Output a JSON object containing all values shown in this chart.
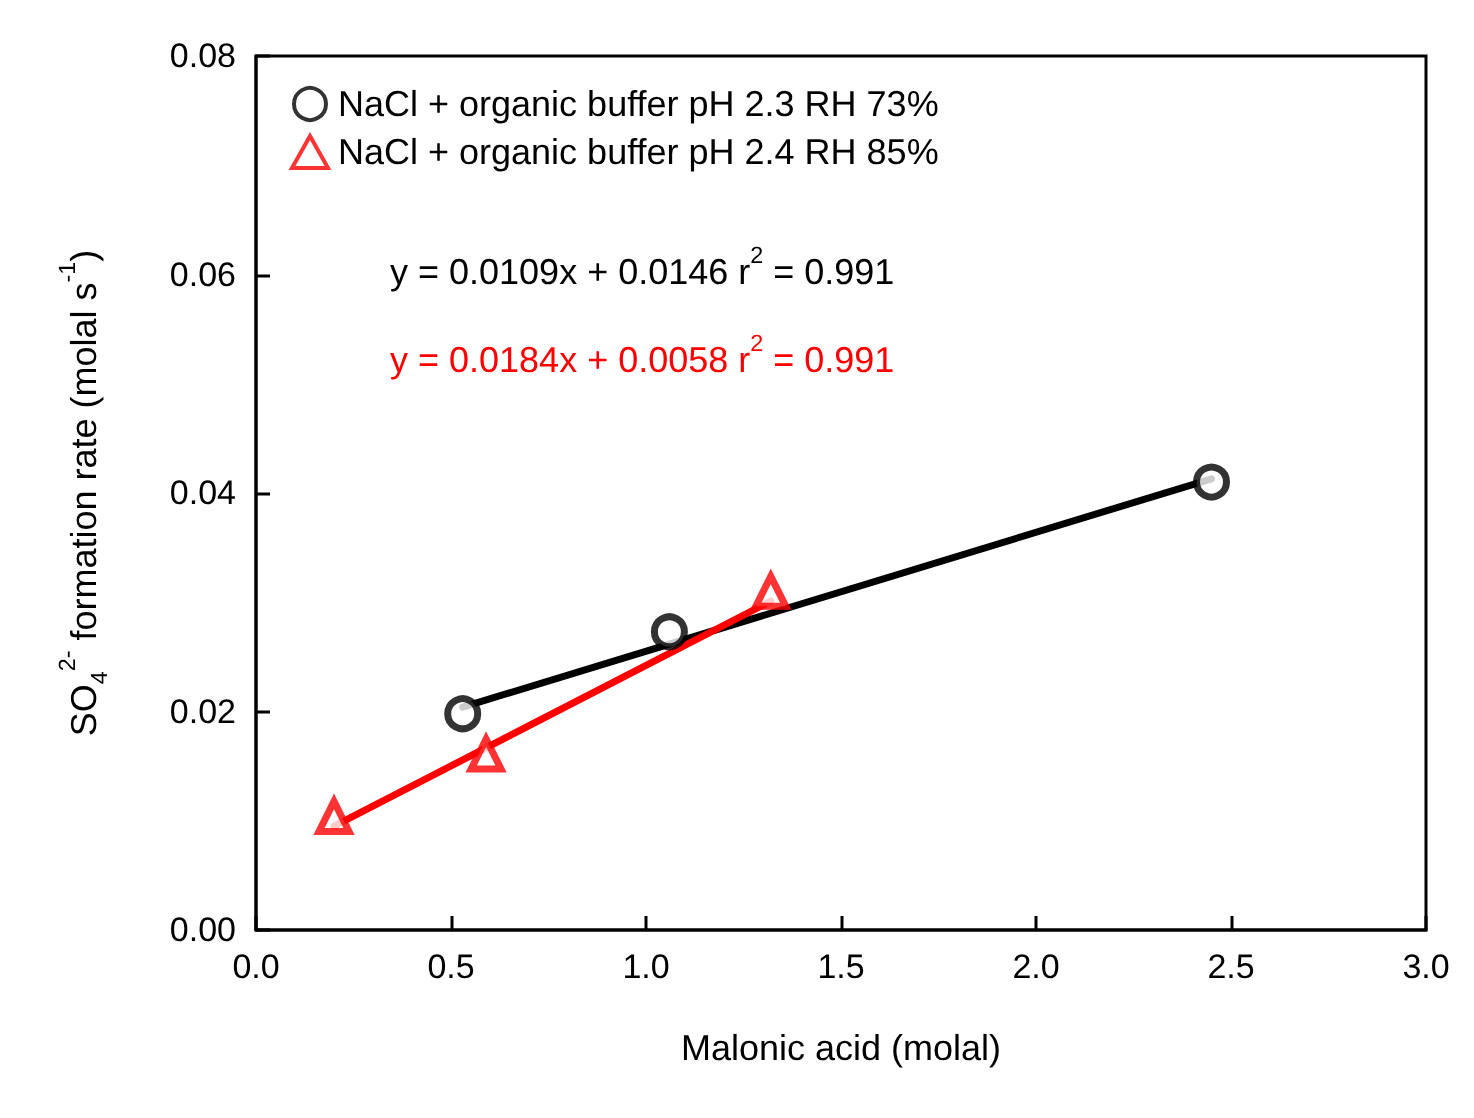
{
  "chart_data": {
    "type": "scatter",
    "xlabel": "Malonic acid (molal)",
    "ylabel": "SO$_{4}$$^{2-}$ formation rate (molal s$^{-1}$)",
    "xlim": [
      0,
      3
    ],
    "xticks": [
      {
        "value": 0,
        "label": "0.0"
      },
      {
        "value": 0.5,
        "label": "0.5"
      },
      {
        "value": 1,
        "label": "1.0"
      },
      {
        "value": 1.5,
        "label": "1.5"
      },
      {
        "value": 2,
        "label": "2.0"
      },
      {
        "value": 2.5,
        "label": "2.5"
      },
      {
        "value": 3,
        "label": "3.0"
      }
    ],
    "ylim": [
      0,
      0.08
    ],
    "yticks": [
      {
        "value": 0,
        "label": "0.00"
      },
      {
        "value": 0.02,
        "label": "0.02"
      },
      {
        "value": 0.04,
        "label": "0.04"
      },
      {
        "value": 0.06,
        "label": "0.06"
      },
      {
        "value": 0.08,
        "label": "0.08"
      }
    ],
    "legend": "top left",
    "grid": false,
    "annotations": [
      "y = 0.0109x + 0.0146 r$^{2}$ = 0.991",
      "y = 0.0184x + 0.0058 r$^{2}$ = 0.991"
    ],
    "series": [
      {
        "name": "NaCl + organic buffer pH 2.3 RH 73%",
        "color": "#000000",
        "marker": "circle",
        "x": [
          0.53,
          1.06,
          2.45
        ],
        "values": [
          0.0198,
          0.0273,
          0.041
        ]
      },
      {
        "name": "NaCl + organic buffer pH 2.4 RH 85%",
        "color": "#ff0000",
        "marker": "triangle",
        "x": [
          0.2,
          0.59,
          1.32
        ],
        "values": [
          0.0104,
          0.0161,
          0.031
        ]
      },
      {
        "type": "line",
        "color": "#000000",
        "x": [
          0.53,
          2.45
        ],
        "values": [
          0.0204,
          0.0413
        ]
      },
      {
        "type": "line",
        "color": "#ff0000",
        "x": [
          0.2,
          1.32
        ],
        "values": [
          0.0095,
          0.0301
        ]
      }
    ]
  }
}
